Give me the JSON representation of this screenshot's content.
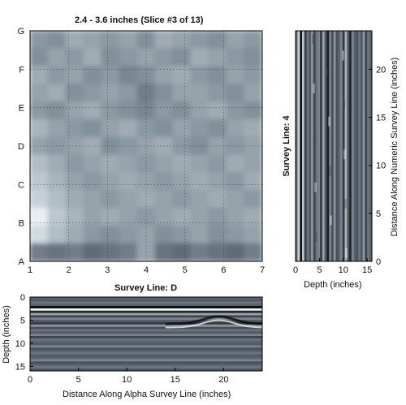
{
  "chart_data": [
    {
      "type": "heatmap",
      "title": "2.4 - 3.6 inches  (Slice #3 of 13)",
      "x_ticks": [
        "1",
        "2",
        "3",
        "4",
        "5",
        "6",
        "7"
      ],
      "y_ticks": [
        "A",
        "B",
        "C",
        "D",
        "E",
        "F",
        "G"
      ],
      "xlim": [
        1,
        7
      ],
      "ylim": [
        0,
        6
      ],
      "grid": true,
      "colormap": [
        "#ffffff",
        "#dfe6ec",
        "#bfc9d1",
        "#a3b0b8",
        "#86959e",
        "#6c7b86",
        "#58626e",
        "#444a55"
      ],
      "values": [
        [
          0.55,
          0.6,
          0.45,
          0.5,
          0.55,
          0.5,
          0.6,
          0.45,
          0.5,
          0.55,
          0.6,
          0.5,
          0.55
        ],
        [
          0.6,
          0.5,
          0.55,
          0.45,
          0.6,
          0.55,
          0.5,
          0.55,
          0.6,
          0.45,
          0.5,
          0.55,
          0.6
        ],
        [
          0.45,
          0.55,
          0.5,
          0.6,
          0.55,
          0.65,
          0.6,
          0.5,
          0.45,
          0.55,
          0.6,
          0.5,
          0.55
        ],
        [
          0.5,
          0.45,
          0.6,
          0.55,
          0.5,
          0.55,
          0.7,
          0.6,
          0.5,
          0.5,
          0.55,
          0.6,
          0.5
        ],
        [
          0.55,
          0.6,
          0.5,
          0.45,
          0.55,
          0.6,
          0.65,
          0.55,
          0.6,
          0.5,
          0.45,
          0.55,
          0.6
        ],
        [
          0.4,
          0.5,
          0.55,
          0.6,
          0.5,
          0.45,
          0.55,
          0.6,
          0.5,
          0.55,
          0.6,
          0.5,
          0.45
        ],
        [
          0.5,
          0.55,
          0.5,
          0.45,
          0.6,
          0.55,
          0.5,
          0.45,
          0.55,
          0.6,
          0.5,
          0.55,
          0.5
        ],
        [
          0.35,
          0.45,
          0.55,
          0.5,
          0.45,
          0.5,
          0.55,
          0.5,
          0.45,
          0.5,
          0.55,
          0.45,
          0.5
        ],
        [
          0.3,
          0.4,
          0.5,
          0.55,
          0.5,
          0.45,
          0.5,
          0.55,
          0.5,
          0.45,
          0.5,
          0.55,
          0.45
        ],
        [
          0.25,
          0.35,
          0.45,
          0.5,
          0.55,
          0.5,
          0.45,
          0.5,
          0.55,
          0.5,
          0.45,
          0.5,
          0.55
        ],
        [
          0.1,
          0.3,
          0.4,
          0.5,
          0.45,
          0.5,
          0.55,
          0.5,
          0.45,
          0.5,
          0.55,
          0.5,
          0.45
        ],
        [
          0.2,
          0.35,
          0.45,
          0.55,
          0.6,
          0.55,
          0.5,
          0.6,
          0.55,
          0.5,
          0.6,
          0.55,
          0.5
        ],
        [
          0.7,
          0.75,
          0.7,
          0.8,
          0.75,
          0.7,
          0.5,
          0.75,
          0.8,
          0.7,
          0.75,
          0.8,
          0.7
        ]
      ]
    },
    {
      "type": "heatmap",
      "title": "Survey Line: 4",
      "xlabel": "Depth (inches)",
      "ylabel": "Distance Along Numeric Survey Line (inches)",
      "x_ticks": [
        "0",
        "5",
        "10",
        "15"
      ],
      "y_ticks": [
        "0",
        "5",
        "10",
        "15",
        "20"
      ],
      "xlim": [
        0,
        16
      ],
      "ylim": [
        0,
        24
      ],
      "colormap": [
        "#ffffff",
        "#5a6470",
        "#000000"
      ],
      "depth_profile": [
        0.5,
        0.15,
        0.9,
        0.2,
        0.7,
        0.45,
        0.55,
        0.35,
        0.65,
        0.45,
        0.4,
        0.7,
        0.3,
        0.55,
        0.85,
        0.4,
        0.6,
        0.35,
        0.6,
        0.5,
        0.4,
        0.7,
        0.25,
        0.55,
        0.8,
        0.4,
        0.5,
        0.6,
        0.45,
        0.55,
        0.35,
        0.65,
        0.45,
        0.5
      ]
    },
    {
      "type": "heatmap",
      "title": "Survey Line: D",
      "xlabel": "Distance Along Alpha Survey Line (inches)",
      "ylabel": "Depth (inches)",
      "x_ticks": [
        "0",
        "5",
        "10",
        "15",
        "20"
      ],
      "y_ticks": [
        "0",
        "5",
        "10",
        "15"
      ],
      "xlim": [
        0,
        24
      ],
      "ylim": [
        0,
        16
      ],
      "colormap": [
        "#ffffff",
        "#5a6470",
        "#000000"
      ],
      "depth_profile": [
        0.5,
        0.55,
        0.45,
        0.5,
        0.95,
        0.05,
        0.8,
        0.3,
        0.65,
        0.4,
        0.55,
        0.7,
        0.35,
        0.6,
        0.45,
        0.55,
        0.4,
        0.65,
        0.45,
        0.5,
        0.55,
        0.4,
        0.6,
        0.5,
        0.45,
        0.55,
        0.5,
        0.4,
        0.6,
        0.5,
        0.45,
        0.55
      ]
    }
  ]
}
